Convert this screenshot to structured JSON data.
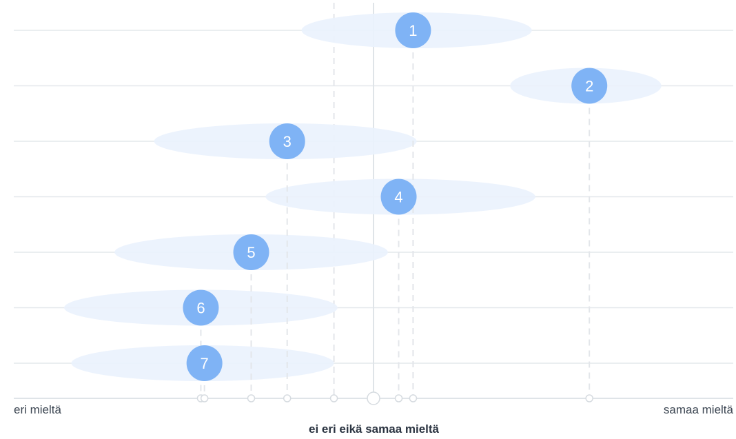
{
  "chart_data": {
    "type": "scatter",
    "xlim": [
      -1,
      1
    ],
    "scale_labels": {
      "left": "eri mieltä",
      "center": "ei eri eikä samaa mieltä",
      "right": "samaa mieltä"
    },
    "items": [
      {
        "label": "1",
        "mean": 0.11,
        "spread": [
          -0.2,
          0.44
        ]
      },
      {
        "label": "2",
        "mean": 0.6,
        "spread": [
          0.38,
          0.8
        ]
      },
      {
        "label": "3",
        "mean": -0.24,
        "spread": [
          -0.61,
          0.12
        ]
      },
      {
        "label": "4",
        "mean": 0.07,
        "spread": [
          -0.3,
          0.45
        ]
      },
      {
        "label": "5",
        "mean": -0.34,
        "spread": [
          -0.72,
          0.04
        ]
      },
      {
        "label": "6",
        "mean": -0.48,
        "spread": [
          -0.86,
          -0.1
        ]
      },
      {
        "label": "7",
        "mean": -0.47,
        "spread": [
          -0.84,
          -0.11
        ]
      }
    ],
    "reference_lines": [
      -0.11
    ],
    "grid": true,
    "colors": {
      "marker": "#7fb3f5",
      "band": "#eaf2fd",
      "grid": "#e4e8ec",
      "axis": "#dfe4e8",
      "guide": "#e3e6ea"
    }
  }
}
